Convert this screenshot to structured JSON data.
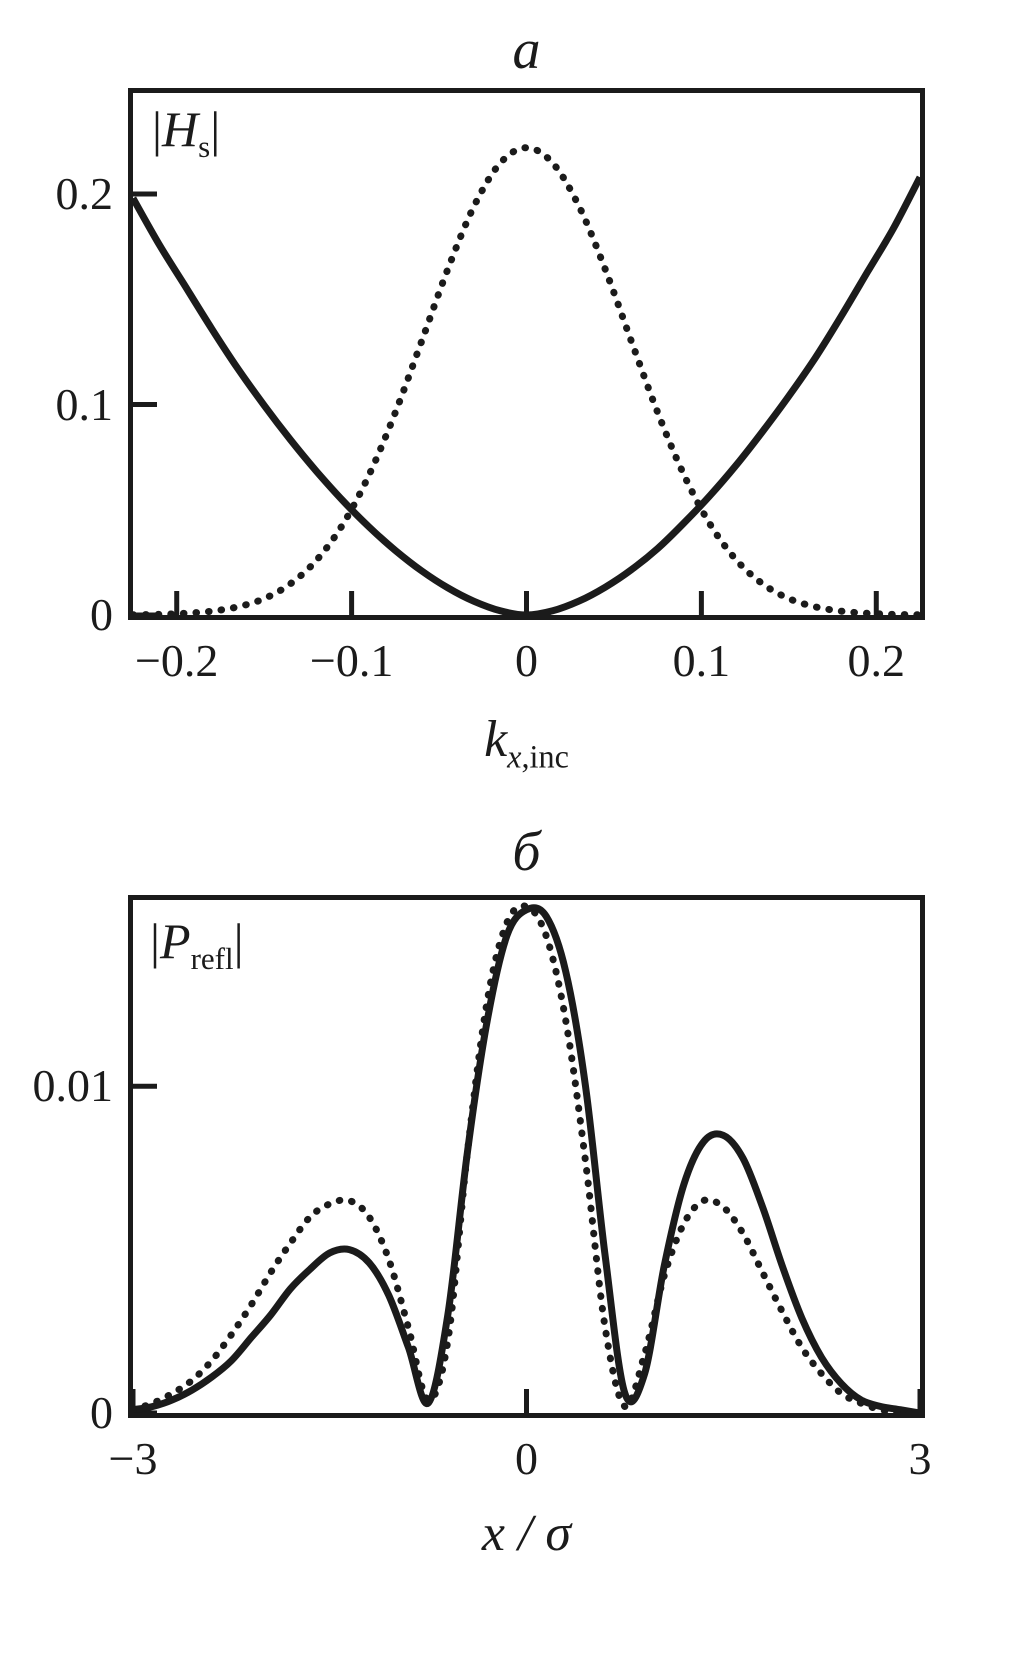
{
  "page": {
    "background": "#ffffff",
    "line_color": "#1b1b1b"
  },
  "chart_data": [
    {
      "type": "line",
      "title": "a",
      "ylabel": "|H_s|",
      "xlabel": "k_x,inc",
      "ylabel_parts": {
        "pre": "|",
        "var": "H",
        "sub": "s",
        "post": "|"
      },
      "xlabel_parts": {
        "base": "k",
        "sub_italic": "x",
        "sub_roman": ",inc"
      },
      "xlim": [
        -0.225,
        0.225
      ],
      "ylim": [
        0,
        0.248
      ],
      "grid": false,
      "legend": "none",
      "xticks": {
        "values": [
          -0.2,
          -0.1,
          0,
          0.1,
          0.2
        ],
        "labels": [
          "−0.2",
          "−0.1",
          "0",
          "0.1",
          "0.2"
        ]
      },
      "yticks": {
        "values": [
          0,
          0.1,
          0.2
        ],
        "labels": [
          "0",
          "0.1",
          "0.2"
        ]
      },
      "x": [
        -0.225,
        -0.21,
        -0.195,
        -0.18,
        -0.165,
        -0.15,
        -0.135,
        -0.12,
        -0.105,
        -0.09,
        -0.075,
        -0.06,
        -0.045,
        -0.03,
        -0.015,
        0,
        0.015,
        0.03,
        0.045,
        0.06,
        0.075,
        0.09,
        0.105,
        0.12,
        0.135,
        0.15,
        0.165,
        0.18,
        0.195,
        0.21,
        0.225
      ],
      "series": [
        {
          "name": "specular-component-solid",
          "style": "solid",
          "values": [
            0.198,
            0.176,
            0.156,
            0.136,
            0.117,
            0.0996,
            0.0833,
            0.0682,
            0.0543,
            0.0418,
            0.0307,
            0.021,
            0.0129,
            0.0065,
            0.002,
            0,
            0.002,
            0.0066,
            0.0132,
            0.0215,
            0.0316,
            0.0437,
            0.0568,
            0.0713,
            0.0872,
            0.104,
            0.122,
            0.142,
            0.163,
            0.184,
            0.208
          ]
        },
        {
          "name": "incident-spectrum-dotted",
          "style": "dotted",
          "values": [
            0.0001,
            0.0003,
            0.0008,
            0.0018,
            0.0039,
            0.0078,
            0.0148,
            0.0261,
            0.0431,
            0.0666,
            0.0962,
            0.13,
            0.1643,
            0.1942,
            0.2147,
            0.222,
            0.2147,
            0.1942,
            0.1643,
            0.13,
            0.0962,
            0.0666,
            0.0431,
            0.0261,
            0.0148,
            0.0078,
            0.0039,
            0.0018,
            0.0008,
            0.0003,
            0.0001
          ]
        }
      ]
    },
    {
      "type": "line",
      "title": "б",
      "ylabel": "|P_refl|",
      "xlabel": "x / σ",
      "ylabel_parts": {
        "pre": "|",
        "var": "P",
        "sub": "refl",
        "post": "|"
      },
      "xlabel_parts": {
        "base": "x / σ",
        "sub_italic": "",
        "sub_roman": ""
      },
      "xlim": [
        -3,
        3
      ],
      "ylim": [
        0,
        0.0157
      ],
      "grid": false,
      "legend": "none",
      "xticks": {
        "values": [
          -3,
          0,
          3
        ],
        "labels": [
          "−3",
          "0",
          "3"
        ]
      },
      "yticks": {
        "values": [
          0,
          0.01
        ],
        "labels": [
          "0",
          "0.01"
        ]
      },
      "x": [
        -3,
        -2.85,
        -2.7,
        -2.55,
        -2.4,
        -2.25,
        -2.1,
        -1.95,
        -1.8,
        -1.65,
        -1.5,
        -1.35,
        -1.2,
        -1.05,
        -0.9,
        -0.75,
        -0.6,
        -0.45,
        -0.3,
        -0.15,
        0,
        0.15,
        0.3,
        0.45,
        0.6,
        0.75,
        0.9,
        1.05,
        1.2,
        1.35,
        1.5,
        1.65,
        1.8,
        1.95,
        2.1,
        2.25,
        2.4,
        2.55,
        2.7,
        2.85,
        3
      ],
      "series": [
        {
          "name": "reflected-field-solid",
          "style": "solid",
          "values": [
            0.0001,
            0.0002,
            0.0004,
            0.0007,
            0.0011,
            0.0016,
            0.0023,
            0.003,
            0.0038,
            0.0044,
            0.0049,
            0.005,
            0.0046,
            0.0036,
            0.002,
            0.0003,
            0.003,
            0.008,
            0.012,
            0.0146,
            0.0154,
            0.0152,
            0.0135,
            0.01,
            0.0048,
            0.0006,
            0.0012,
            0.0045,
            0.007,
            0.0083,
            0.0085,
            0.0078,
            0.0063,
            0.0045,
            0.0029,
            0.0017,
            0.0009,
            0.0004,
            0.0002,
            0.0001,
            0
          ]
        },
        {
          "name": "reflected-field-dotted",
          "style": "dotted",
          "values": [
            0.0001,
            0.0003,
            0.0006,
            0.001,
            0.0016,
            0.0024,
            0.0033,
            0.0043,
            0.0052,
            0.006,
            0.0064,
            0.0065,
            0.006,
            0.0047,
            0.0026,
            0.0004,
            0.0022,
            0.008,
            0.0126,
            0.015,
            0.0155,
            0.0146,
            0.012,
            0.0077,
            0.0026,
            0.0002,
            0.0018,
            0.0042,
            0.0058,
            0.0065,
            0.0063,
            0.0055,
            0.0043,
            0.0031,
            0.002,
            0.0012,
            0.0006,
            0.0003,
            0.0001,
            0,
            0
          ]
        }
      ]
    }
  ]
}
